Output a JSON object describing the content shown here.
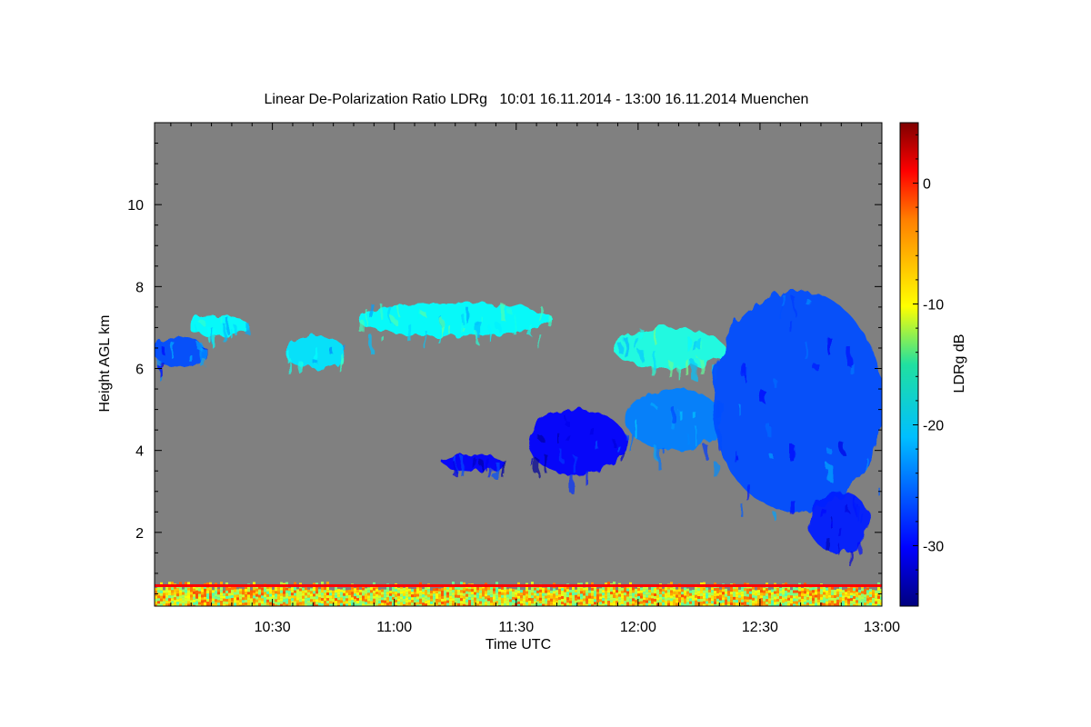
{
  "chart_data": {
    "type": "heatmap",
    "title": "Linear De-Polarization Ratio LDRg   10:01 16.11.2014 - 13:00 16.11.2014 Muenchen",
    "xlabel": "Time UTC",
    "ylabel": "Height AGL km",
    "xlim": [
      "10:01",
      "13:00"
    ],
    "ylim": [
      0.2,
      12
    ],
    "x_ticks": [
      {
        "label": "10:30",
        "value": 10.5
      },
      {
        "label": "11:00",
        "value": 11.0
      },
      {
        "label": "11:30",
        "value": 11.5
      },
      {
        "label": "12:00",
        "value": 12.0
      },
      {
        "label": "12:30",
        "value": 12.5
      },
      {
        "label": "13:00",
        "value": 13.0
      }
    ],
    "y_ticks": [
      {
        "label": "2",
        "value": 2
      },
      {
        "label": "4",
        "value": 4
      },
      {
        "label": "6",
        "value": 6
      },
      {
        "label": "8",
        "value": 8
      },
      {
        "label": "10",
        "value": 10
      }
    ],
    "colorbar": {
      "label": "LDRg dB",
      "range": [
        -35,
        5
      ],
      "ticks": [
        {
          "label": "0",
          "value": 0
        },
        {
          "label": "-10",
          "value": -10
        },
        {
          "label": "-20",
          "value": -20
        },
        {
          "label": "-30",
          "value": -30
        }
      ],
      "colormap": "jet"
    },
    "background_color": "#808080",
    "regions": [
      {
        "t0": 10.02,
        "t1": 10.22,
        "h0": 6.0,
        "h1": 6.8,
        "ldr": -27
      },
      {
        "t0": 10.15,
        "t1": 10.4,
        "h0": 6.8,
        "h1": 7.3,
        "ldr": -20
      },
      {
        "t0": 10.55,
        "t1": 10.8,
        "h0": 6.0,
        "h1": 6.8,
        "ldr": -21
      },
      {
        "t0": 10.85,
        "t1": 11.65,
        "h0": 6.8,
        "h1": 7.6,
        "ldr": -20
      },
      {
        "t0": 11.2,
        "t1": 11.45,
        "h0": 3.5,
        "h1": 3.9,
        "ldr": -30
      },
      {
        "t0": 11.55,
        "t1": 11.95,
        "h0": 3.4,
        "h1": 5.0,
        "ldr": -30
      },
      {
        "t0": 11.95,
        "t1": 12.35,
        "h0": 4.0,
        "h1": 5.5,
        "ldr": -25
      },
      {
        "t0": 11.9,
        "t1": 12.35,
        "h0": 6.0,
        "h1": 7.0,
        "ldr": -19
      },
      {
        "t0": 12.3,
        "t1": 13.0,
        "h0": 2.5,
        "h1": 7.9,
        "ldr": -27
      },
      {
        "t0": 12.7,
        "t1": 12.95,
        "h0": 1.5,
        "h1": 3.0,
        "ldr": -29
      }
    ],
    "near_ground_layer": {
      "h0": 0.2,
      "h1": 0.8,
      "ldr": -10,
      "note_band_h": 0.7,
      "note_band_ldr": 0
    }
  }
}
